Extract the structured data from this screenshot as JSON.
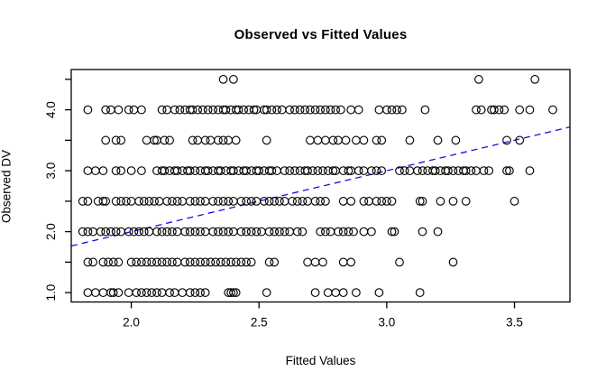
{
  "chart_data": {
    "type": "scatter",
    "title": "Observed vs Fitted Values",
    "xlabel": "Fitted Values",
    "ylabel": "Observed DV",
    "point_style": "open-circle",
    "point_color": "#000000",
    "grid": false,
    "legend": "none",
    "axes": {
      "x": {
        "range": [
          1.765,
          3.717
        ],
        "ticks": [
          2.0,
          2.5,
          3.0,
          3.5
        ],
        "tick_labels": [
          "2.0",
          "2.5",
          "3.0",
          "3.5"
        ]
      },
      "y": {
        "range": [
          0.846,
          4.661
        ],
        "ticks": [
          1.0,
          1.5,
          2.0,
          2.5,
          3.0,
          3.5,
          4.0,
          4.5
        ],
        "tick_labels": [
          "1.0",
          "",
          "2.0",
          "",
          "3.0",
          "",
          "4.0",
          ""
        ]
      }
    },
    "reference_line": {
      "name": "identity-line",
      "equation": "y = x",
      "from": [
        1.765,
        1.765
      ],
      "to": [
        3.717,
        3.717
      ],
      "color": "#1414e0",
      "dashed": true
    },
    "series": [
      {
        "y": 4.5,
        "x": [
          2.36,
          2.4,
          3.36,
          3.58
        ]
      },
      {
        "y": 4.0,
        "x": [
          1.83,
          1.9,
          1.92,
          1.95,
          1.99,
          2.01,
          2.04,
          2.12,
          2.14,
          2.17,
          2.19,
          2.21,
          2.23,
          2.24,
          2.26,
          2.28,
          2.3,
          2.32,
          2.34,
          2.36,
          2.37,
          2.39,
          2.41,
          2.42,
          2.44,
          2.46,
          2.48,
          2.49,
          2.52,
          2.53,
          2.55,
          2.57,
          2.59,
          2.62,
          2.64,
          2.66,
          2.68,
          2.7,
          2.72,
          2.74,
          2.76,
          2.78,
          2.8,
          2.82,
          2.86,
          2.89,
          2.97,
          3.0,
          3.02,
          3.04,
          3.06,
          3.15,
          3.35,
          3.37,
          3.41,
          3.42,
          3.44,
          3.46,
          3.52,
          3.56,
          3.65
        ]
      },
      {
        "y": 3.5,
        "x": [
          1.9,
          1.94,
          1.96,
          2.06,
          2.09,
          2.1,
          2.13,
          2.15,
          2.24,
          2.26,
          2.29,
          2.31,
          2.34,
          2.36,
          2.38,
          2.41,
          2.53,
          2.7,
          2.73,
          2.76,
          2.79,
          2.81,
          2.84,
          2.88,
          2.91,
          2.96,
          2.98,
          3.09,
          3.2,
          3.27,
          3.47,
          3.52
        ]
      },
      {
        "y": 3.0,
        "x": [
          1.83,
          1.86,
          1.89,
          1.94,
          1.96,
          2.0,
          2.04,
          2.1,
          2.12,
          2.13,
          2.15,
          2.17,
          2.18,
          2.2,
          2.22,
          2.23,
          2.25,
          2.27,
          2.29,
          2.3,
          2.32,
          2.34,
          2.35,
          2.37,
          2.39,
          2.4,
          2.42,
          2.44,
          2.45,
          2.47,
          2.49,
          2.5,
          2.52,
          2.54,
          2.55,
          2.57,
          2.6,
          2.62,
          2.64,
          2.66,
          2.68,
          2.69,
          2.71,
          2.73,
          2.75,
          2.77,
          2.79,
          2.8,
          2.83,
          2.85,
          2.86,
          2.89,
          2.91,
          2.94,
          2.96,
          2.98,
          3.05,
          3.07,
          3.09,
          3.12,
          3.14,
          3.16,
          3.18,
          3.19,
          3.21,
          3.23,
          3.24,
          3.26,
          3.28,
          3.3,
          3.31,
          3.33,
          3.35,
          3.38,
          3.4,
          3.47,
          3.48,
          3.56
        ]
      },
      {
        "y": 2.5,
        "x": [
          1.81,
          1.83,
          1.87,
          1.89,
          1.9,
          1.94,
          1.96,
          1.98,
          2.0,
          2.03,
          2.05,
          2.07,
          2.09,
          2.11,
          2.14,
          2.16,
          2.18,
          2.2,
          2.23,
          2.25,
          2.27,
          2.29,
          2.32,
          2.34,
          2.36,
          2.38,
          2.4,
          2.43,
          2.45,
          2.47,
          2.49,
          2.52,
          2.54,
          2.56,
          2.58,
          2.6,
          2.63,
          2.65,
          2.67,
          2.69,
          2.72,
          2.74,
          2.76,
          2.83,
          2.86,
          2.91,
          2.93,
          2.96,
          2.98,
          3.0,
          3.02,
          3.13,
          3.14,
          3.21,
          3.26,
          3.31,
          3.5
        ]
      },
      {
        "y": 2.0,
        "x": [
          1.81,
          1.83,
          1.85,
          1.88,
          1.9,
          1.92,
          1.94,
          1.96,
          1.99,
          2.01,
          2.03,
          2.05,
          2.07,
          2.1,
          2.12,
          2.14,
          2.16,
          2.18,
          2.21,
          2.23,
          2.25,
          2.27,
          2.29,
          2.32,
          2.34,
          2.36,
          2.38,
          2.4,
          2.43,
          2.45,
          2.47,
          2.49,
          2.51,
          2.54,
          2.56,
          2.58,
          2.6,
          2.62,
          2.65,
          2.67,
          2.74,
          2.76,
          2.78,
          2.81,
          2.83,
          2.85,
          2.87,
          2.91,
          2.94,
          3.02,
          3.03,
          3.14,
          3.2
        ]
      },
      {
        "y": 1.5,
        "x": [
          1.83,
          1.85,
          1.89,
          1.91,
          1.93,
          1.95,
          2.0,
          2.02,
          2.04,
          2.06,
          2.08,
          2.1,
          2.12,
          2.14,
          2.16,
          2.18,
          2.21,
          2.23,
          2.25,
          2.27,
          2.29,
          2.31,
          2.33,
          2.35,
          2.37,
          2.39,
          2.41,
          2.43,
          2.45,
          2.47,
          2.54,
          2.56,
          2.69,
          2.72,
          2.75,
          2.83,
          2.86,
          3.05,
          3.26
        ]
      },
      {
        "y": 1.0,
        "x": [
          1.83,
          1.86,
          1.89,
          1.92,
          1.93,
          1.95,
          1.99,
          2.02,
          2.04,
          2.06,
          2.08,
          2.1,
          2.12,
          2.15,
          2.17,
          2.2,
          2.23,
          2.25,
          2.27,
          2.29,
          2.38,
          2.39,
          2.4,
          2.41,
          2.53,
          2.72,
          2.77,
          2.8,
          2.83,
          2.88,
          2.97,
          3.13
        ]
      }
    ]
  }
}
